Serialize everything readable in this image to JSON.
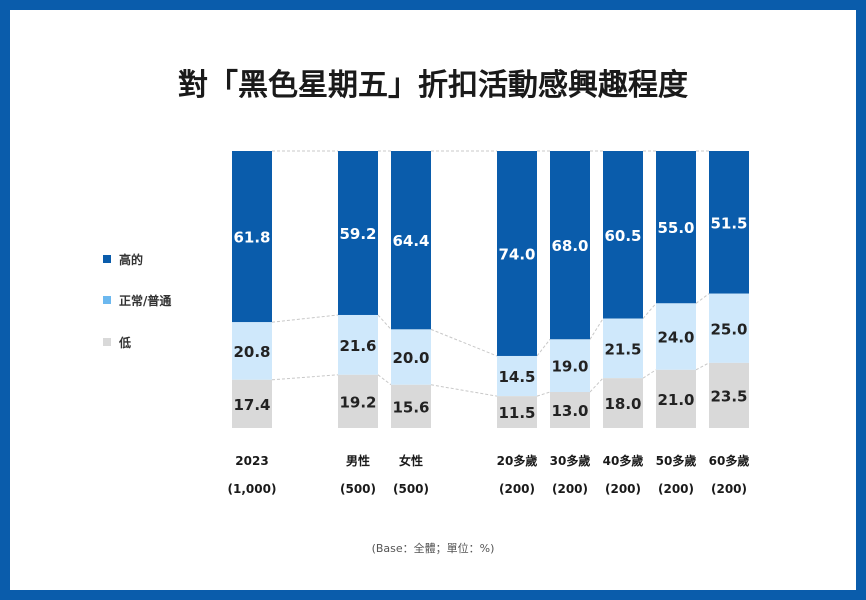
{
  "title": "對「黑色星期五」折扣活動感興趣程度",
  "footnote": "(Base：全體；單位：%)",
  "colors": {
    "frame": "#0a5cab",
    "high": "#0a5cab",
    "normal": "#cfe8fb",
    "low": "#d9d9d9",
    "legend_normal": "#6cb8ef"
  },
  "chart_data": {
    "type": "bar",
    "stacked": true,
    "percent_stacked": true,
    "categories": [
      "2023",
      "男性",
      "女性",
      "20多歲",
      "30多歲",
      "40多歲",
      "50多歲",
      "60多歲"
    ],
    "bases": [
      "(1,000)",
      "(500)",
      "(500)",
      "(200)",
      "(200)",
      "(200)",
      "(200)",
      "(200)"
    ],
    "series": [
      {
        "name": "高的",
        "values": [
          61.8,
          59.2,
          64.4,
          74.0,
          68.0,
          60.5,
          55.0,
          51.5
        ]
      },
      {
        "name": "正常/普通",
        "values": [
          20.8,
          21.6,
          20.0,
          14.5,
          19.0,
          21.5,
          24.0,
          25.0
        ]
      },
      {
        "name": "低",
        "values": [
          17.4,
          19.2,
          15.6,
          11.5,
          13.0,
          18.0,
          21.0,
          23.5
        ]
      }
    ],
    "value_labels": [
      [
        "61.8",
        "59.2",
        "64.4",
        "74.0",
        "68.0",
        "60.5",
        "55.0",
        "51.5"
      ],
      [
        "20.8",
        "21.6",
        "20.0",
        "14.5",
        "19.0",
        "21.5",
        "24.0",
        "25.0"
      ],
      [
        "17.4",
        "19.2",
        "15.6",
        "11.5",
        "13.0",
        "18.0",
        "21.0",
        "23.5"
      ]
    ],
    "legend": [
      "高的",
      "正常/普通",
      "低"
    ],
    "legend_position": "left",
    "ylim": [
      0,
      100
    ],
    "grid": false
  }
}
